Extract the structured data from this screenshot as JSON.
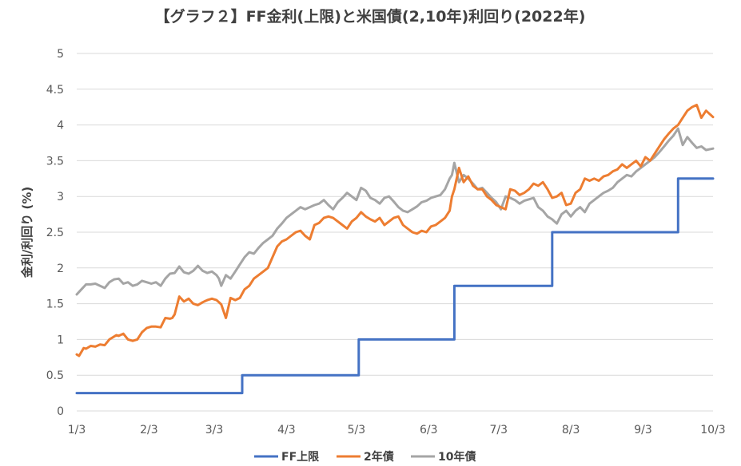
{
  "chart_data": {
    "type": "line",
    "title": "【グラフ２】FF金利(上限)と米国債(2,10年)利回り(2022年)",
    "ylabel": "金利/利回り (%)",
    "xlabel": "",
    "ylim": [
      0,
      5
    ],
    "yticks": [
      "0",
      "0.5",
      "1",
      "1.5",
      "2",
      "2.5",
      "3",
      "3.5",
      "4",
      "4.5",
      "5"
    ],
    "xlim": [
      0,
      273
    ],
    "xtick_labels": [
      "1/3",
      "2/3",
      "3/3",
      "4/3",
      "5/3",
      "6/3",
      "7/3",
      "8/3",
      "9/3",
      "10/3"
    ],
    "xtick_days": [
      0,
      31,
      59,
      90,
      120,
      151,
      181,
      212,
      243,
      273
    ],
    "grid": "horizontal",
    "legend": "bottom",
    "series": [
      {
        "name": "FF上限",
        "color": "#4472c4",
        "x": [
          0,
          71,
          71,
          121,
          121,
          162,
          162,
          204,
          204,
          258,
          258,
          273
        ],
        "y": [
          0.25,
          0.25,
          0.5,
          0.5,
          1.0,
          1.0,
          1.75,
          1.75,
          2.5,
          2.5,
          3.25,
          3.25
        ]
      },
      {
        "name": "2年債",
        "color": "#ed7d31",
        "x": [
          0,
          1,
          3,
          4,
          6,
          8,
          10,
          12,
          14,
          16,
          17,
          18,
          20,
          22,
          24,
          26,
          28,
          30,
          32,
          34,
          36,
          38,
          40,
          41,
          42,
          44,
          46,
          48,
          50,
          52,
          54,
          56,
          58,
          60,
          61,
          62,
          64,
          66,
          68,
          70,
          72,
          74,
          76,
          78,
          80,
          82,
          84,
          86,
          88,
          90,
          92,
          94,
          96,
          98,
          100,
          102,
          104,
          106,
          108,
          110,
          112,
          114,
          116,
          118,
          120,
          122,
          124,
          126,
          128,
          130,
          132,
          134,
          136,
          138,
          140,
          142,
          144,
          146,
          148,
          150,
          152,
          154,
          156,
          158,
          160,
          161,
          162,
          164,
          166,
          168,
          170,
          172,
          174,
          176,
          178,
          180,
          182,
          184,
          186,
          188,
          190,
          192,
          194,
          196,
          198,
          200,
          202,
          204,
          206,
          208,
          210,
          212,
          214,
          216,
          218,
          220,
          222,
          224,
          226,
          228,
          230,
          232,
          234,
          236,
          238,
          240,
          242,
          244,
          246,
          248,
          250,
          252,
          254,
          256,
          258,
          260,
          262,
          264,
          266,
          268,
          270,
          273
        ],
        "y": [
          0.79,
          0.77,
          0.88,
          0.87,
          0.91,
          0.9,
          0.93,
          0.92,
          1.0,
          1.04,
          1.06,
          1.05,
          1.08,
          1.0,
          0.98,
          1.0,
          1.1,
          1.16,
          1.18,
          1.18,
          1.17,
          1.3,
          1.29,
          1.3,
          1.35,
          1.6,
          1.53,
          1.57,
          1.5,
          1.48,
          1.52,
          1.55,
          1.57,
          1.55,
          1.52,
          1.49,
          1.3,
          1.58,
          1.55,
          1.58,
          1.7,
          1.75,
          1.85,
          1.9,
          1.95,
          2.0,
          2.15,
          2.3,
          2.37,
          2.4,
          2.45,
          2.5,
          2.52,
          2.45,
          2.4,
          2.6,
          2.63,
          2.7,
          2.72,
          2.7,
          2.65,
          2.6,
          2.55,
          2.65,
          2.7,
          2.78,
          2.72,
          2.68,
          2.65,
          2.7,
          2.6,
          2.65,
          2.7,
          2.72,
          2.6,
          2.55,
          2.5,
          2.48,
          2.52,
          2.5,
          2.58,
          2.6,
          2.65,
          2.7,
          2.8,
          3.0,
          3.1,
          3.4,
          3.2,
          3.28,
          3.15,
          3.1,
          3.1,
          3.0,
          2.95,
          2.88,
          2.85,
          2.82,
          3.1,
          3.08,
          3.02,
          3.05,
          3.1,
          3.18,
          3.15,
          3.2,
          3.1,
          2.98,
          3.0,
          3.05,
          2.88,
          2.9,
          3.05,
          3.1,
          3.25,
          3.22,
          3.25,
          3.22,
          3.28,
          3.3,
          3.35,
          3.38,
          3.45,
          3.4,
          3.45,
          3.5,
          3.42,
          3.55,
          3.5,
          3.6,
          3.7,
          3.8,
          3.88,
          3.95,
          4.0,
          4.1,
          4.2,
          4.25,
          4.28,
          4.1,
          4.2,
          4.11
        ]
      },
      {
        "name": "10年債",
        "color": "#a5a5a5",
        "x": [
          0,
          2,
          4,
          6,
          8,
          10,
          12,
          14,
          16,
          18,
          20,
          22,
          24,
          26,
          28,
          30,
          32,
          34,
          36,
          38,
          40,
          42,
          44,
          46,
          48,
          50,
          52,
          54,
          56,
          58,
          60,
          61,
          62,
          64,
          66,
          68,
          70,
          72,
          74,
          76,
          78,
          80,
          82,
          84,
          86,
          88,
          90,
          92,
          94,
          96,
          98,
          100,
          102,
          104,
          106,
          108,
          110,
          112,
          114,
          116,
          118,
          120,
          122,
          124,
          126,
          128,
          130,
          132,
          134,
          136,
          138,
          140,
          142,
          144,
          146,
          148,
          150,
          152,
          154,
          156,
          158,
          160,
          161,
          162,
          164,
          166,
          168,
          170,
          172,
          174,
          176,
          178,
          180,
          182,
          184,
          186,
          188,
          190,
          192,
          194,
          196,
          198,
          200,
          202,
          204,
          206,
          208,
          210,
          212,
          214,
          216,
          218,
          220,
          222,
          224,
          226,
          228,
          230,
          232,
          234,
          236,
          238,
          240,
          242,
          244,
          246,
          248,
          250,
          252,
          254,
          256,
          258,
          260,
          262,
          264,
          266,
          268,
          270,
          273
        ],
        "y": [
          1.63,
          1.7,
          1.77,
          1.77,
          1.78,
          1.75,
          1.72,
          1.8,
          1.84,
          1.85,
          1.78,
          1.8,
          1.75,
          1.77,
          1.82,
          1.8,
          1.78,
          1.8,
          1.75,
          1.85,
          1.92,
          1.93,
          2.02,
          1.94,
          1.92,
          1.96,
          2.03,
          1.96,
          1.93,
          1.95,
          1.9,
          1.85,
          1.75,
          1.9,
          1.85,
          1.95,
          2.05,
          2.15,
          2.22,
          2.2,
          2.28,
          2.35,
          2.4,
          2.45,
          2.55,
          2.62,
          2.7,
          2.75,
          2.8,
          2.85,
          2.82,
          2.85,
          2.88,
          2.9,
          2.95,
          2.88,
          2.82,
          2.92,
          2.98,
          3.05,
          3.0,
          2.95,
          3.12,
          3.08,
          2.98,
          2.95,
          2.9,
          2.98,
          3.0,
          2.93,
          2.85,
          2.8,
          2.78,
          2.82,
          2.86,
          2.92,
          2.94,
          2.98,
          3.0,
          3.02,
          3.1,
          3.25,
          3.3,
          3.47,
          3.2,
          3.3,
          3.25,
          3.18,
          3.1,
          3.12,
          3.05,
          2.98,
          2.92,
          2.82,
          3.0,
          2.98,
          2.95,
          2.9,
          2.94,
          2.96,
          2.98,
          2.85,
          2.8,
          2.72,
          2.68,
          2.62,
          2.75,
          2.8,
          2.72,
          2.8,
          2.85,
          2.78,
          2.9,
          2.95,
          3.0,
          3.05,
          3.08,
          3.12,
          3.2,
          3.25,
          3.3,
          3.28,
          3.35,
          3.4,
          3.45,
          3.5,
          3.55,
          3.62,
          3.7,
          3.78,
          3.85,
          3.95,
          3.72,
          3.83,
          3.75,
          3.68,
          3.7,
          3.65,
          3.67
        ]
      }
    ]
  }
}
